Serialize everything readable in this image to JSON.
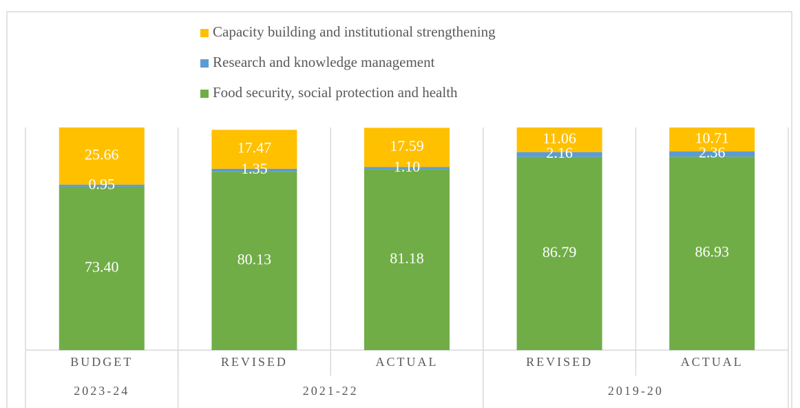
{
  "chart_data": {
    "type": "stacked_bar",
    "groups": [
      {
        "name": "2023-24",
        "categories": [
          "BUDGET"
        ]
      },
      {
        "name": "2021-22",
        "categories": [
          "REVISED",
          "ACTUAL"
        ]
      },
      {
        "name": "2019-20",
        "categories": [
          "REVISED",
          "ACTUAL"
        ]
      }
    ],
    "series": [
      {
        "name": "Food security, social protection and health",
        "color": "#70ad47",
        "values": [
          73.4,
          80.13,
          81.18,
          86.79,
          86.93
        ],
        "value_labels": [
          "73.40",
          "80.13",
          "81.18",
          "86.79",
          "86.93"
        ]
      },
      {
        "name": "Research and knowledge management",
        "color": "#5b9bd5",
        "values": [
          0.95,
          1.35,
          1.1,
          2.16,
          2.36
        ],
        "value_labels": [
          "0.95",
          "1.35",
          "1.10",
          "2.16",
          "2.36"
        ]
      },
      {
        "name": "Capacity building and institutional strengthening",
        "color": "#ffc000",
        "values": [
          25.66,
          17.47,
          17.59,
          11.06,
          10.71
        ],
        "value_labels": [
          "25.66",
          "17.47",
          "17.59",
          "11.06",
          "10.71"
        ]
      }
    ],
    "ylim": [
      0,
      100
    ]
  }
}
